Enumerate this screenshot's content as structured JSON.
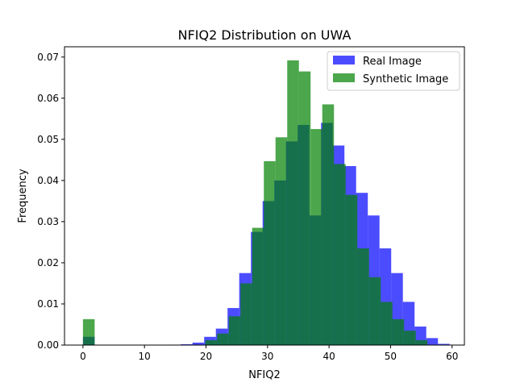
{
  "chart_data": {
    "type": "histogram",
    "title": "NFIQ2 Distribution on UWA",
    "xlabel": "NFIQ2",
    "ylabel": "Frequency",
    "xlim": [
      -3.0,
      62.0
    ],
    "ylim": [
      0,
      0.0725
    ],
    "xticks": [
      0,
      10,
      20,
      30,
      40,
      50,
      60
    ],
    "yticks": [
      0.0,
      0.01,
      0.02,
      0.03,
      0.04,
      0.05,
      0.06,
      0.07
    ],
    "ytick_labels": [
      "0.00",
      "0.01",
      "0.02",
      "0.03",
      "0.04",
      "0.05",
      "0.06",
      "0.07"
    ],
    "legend_position": "top-right",
    "series": [
      {
        "name": "Real Image",
        "color": "#0000ff",
        "opacity": 0.7,
        "bins": [
          [
            0.0,
            1.9,
            0.002
          ],
          [
            14.0,
            15.9,
            0.0001
          ],
          [
            15.9,
            17.8,
            0.0002
          ],
          [
            17.8,
            19.7,
            0.0006
          ],
          [
            19.7,
            21.6,
            0.002
          ],
          [
            21.6,
            23.5,
            0.004
          ],
          [
            23.5,
            25.4,
            0.009
          ],
          [
            25.4,
            27.3,
            0.0175
          ],
          [
            27.3,
            29.2,
            0.0275
          ],
          [
            29.2,
            31.1,
            0.035
          ],
          [
            31.1,
            33.0,
            0.04
          ],
          [
            33.0,
            34.9,
            0.0495
          ],
          [
            34.9,
            36.8,
            0.0535
          ],
          [
            36.8,
            38.7,
            0.0315
          ],
          [
            38.7,
            40.6,
            0.054
          ],
          [
            40.6,
            42.5,
            0.0485
          ],
          [
            42.5,
            44.4,
            0.0435
          ],
          [
            44.4,
            46.3,
            0.037
          ],
          [
            46.3,
            48.2,
            0.0315
          ],
          [
            48.2,
            50.1,
            0.0235
          ],
          [
            50.1,
            52.0,
            0.0175
          ],
          [
            52.0,
            53.9,
            0.0105
          ],
          [
            53.9,
            55.8,
            0.0045
          ],
          [
            55.8,
            57.7,
            0.0017
          ],
          [
            57.7,
            59.6,
            0.0003
          ]
        ]
      },
      {
        "name": "Synthetic Image",
        "color": "#008000",
        "opacity": 0.7,
        "bins": [
          [
            0.0,
            1.9,
            0.0063
          ],
          [
            19.9,
            21.8,
            0.0012
          ],
          [
            21.8,
            23.7,
            0.0028
          ],
          [
            23.7,
            25.6,
            0.007
          ],
          [
            25.6,
            27.5,
            0.015
          ],
          [
            27.5,
            29.4,
            0.0285
          ],
          [
            29.4,
            31.3,
            0.0447
          ],
          [
            31.3,
            33.2,
            0.0505
          ],
          [
            33.2,
            35.1,
            0.0692
          ],
          [
            35.1,
            37.0,
            0.0665
          ],
          [
            37.0,
            38.9,
            0.0525
          ],
          [
            38.9,
            40.8,
            0.0585
          ],
          [
            40.8,
            42.7,
            0.044
          ],
          [
            42.7,
            44.6,
            0.0365
          ],
          [
            44.6,
            46.5,
            0.0235
          ],
          [
            46.5,
            48.4,
            0.0165
          ],
          [
            48.4,
            50.3,
            0.0105
          ],
          [
            50.3,
            52.2,
            0.0063
          ],
          [
            52.2,
            54.1,
            0.0035
          ],
          [
            54.1,
            56.0,
            0.0012
          ]
        ]
      }
    ]
  }
}
